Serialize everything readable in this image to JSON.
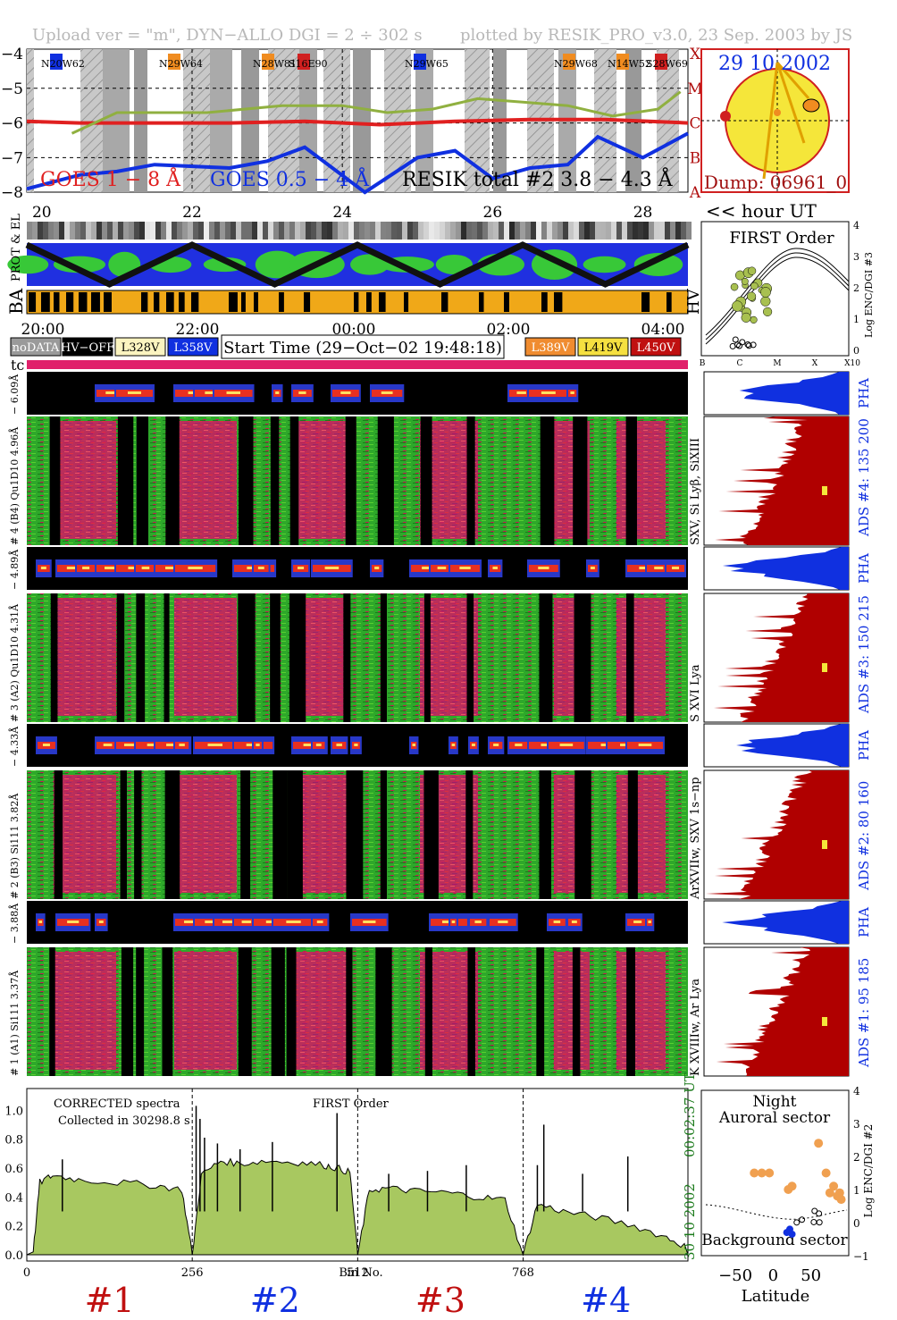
{
  "header": {
    "left": "Upload ver = \"m\", DYN−ALLO DGI =   2 ÷ 302 s",
    "right": "plotted by RESIK_PRO_v3.0, 23 Sep. 2003 by JS"
  },
  "lightcurve": {
    "yticks": [
      "−4",
      "−5",
      "−6",
      "−7",
      "−8"
    ],
    "class_letters": [
      "X",
      "M",
      "C",
      "B",
      "A"
    ],
    "regions": [
      {
        "label": "N20W62",
        "color": "#1030e0"
      },
      {
        "label": "N29W64",
        "color": "#f08c20"
      },
      {
        "label": "N28W81",
        "color": "#f08c20"
      },
      {
        "label": "S16E90",
        "color": "#d02020"
      },
      {
        "label": "N29W65",
        "color": "#1030e0"
      },
      {
        "label": "N29W68",
        "color": "#f08c20"
      },
      {
        "label": "N14W52",
        "color": "#f08c20"
      },
      {
        "label": "S28W69",
        "color": "#d02020"
      }
    ],
    "legend_goes1": "GOES 1 − 8 Å",
    "legend_goes2": "GOES 0.5 − 4 Å",
    "legend_resik": "RESIK total #2  3.8 − 4.3 Å",
    "hour_ticks": [
      "20",
      "22",
      "24",
      "26",
      "28"
    ],
    "hour_label": "<< hour UT"
  },
  "sun": {
    "date": "29 10 2002",
    "dump": "Dump: 06961_0"
  },
  "orbit": {
    "label_prot": "PROT & EL",
    "label_ba": "BA",
    "label_hv": "HV",
    "time_ticks": [
      "20:00",
      "22:00",
      "00:00",
      "02:00",
      "04:00"
    ]
  },
  "legend": {
    "nodata": "noDATA",
    "hvoff": "HV−OFF",
    "l328": "L328V",
    "l358": "L358V",
    "start_time": "Start Time (29−Oct−02 19:48:18)",
    "l389": "L389V",
    "l419": "L419V",
    "l450": "L450V",
    "tc": "tc"
  },
  "first_order": {
    "title": "FIRST Order",
    "ylabel": "Log ENC/DGI #3",
    "yticks": [
      "4",
      "3",
      "2",
      "1",
      "0"
    ],
    "xticks": [
      "B",
      "C",
      "M",
      "X",
      "X10"
    ]
  },
  "channels": [
    {
      "pha_label": "− 6.09Å",
      "main_label": "# 4 (B4) Qu1D10 4.96Å",
      "line_label": "SXV, Si Lyβ, SiXIII",
      "ads": "ADS #4:   135 200"
    },
    {
      "pha_label": "− 4.89Å",
      "main_label": "# 3 (A2) Qu1D10 4.31Å",
      "line_label": "S XVI Lya",
      "ads": "ADS #3:   150 215"
    },
    {
      "pha_label": "− 4.33Å",
      "main_label": "# 2 (B3) Si111 3.82Å",
      "line_label": "ArXVIIw, SXV 1s−np",
      "ads": "ADS #2:    80 160"
    },
    {
      "pha_label": "− 3.88Å",
      "main_label": "# 1 (A1) Si111 3.37Å",
      "line_label": "K XVIIIw, Ar Lya",
      "ads": "ADS #1:    95 185"
    }
  ],
  "pha_tag": "PHA",
  "spectrum": {
    "title1": "CORRECTED spectra",
    "title2": "Collected in 30298.8 s",
    "title3": "FIRST Order",
    "yticks": [
      "1.0",
      "0.8",
      "0.6",
      "0.4",
      "0.2",
      "0.0"
    ],
    "xticks": [
      "0",
      "256",
      "512",
      "768"
    ],
    "xlabel": "Bin No.",
    "date": "30 10 2002",
    "time": "00:02:37 UT",
    "channel_tags": [
      "#1",
      "#2",
      "#3",
      "#4"
    ]
  },
  "latitude": {
    "night": "Night",
    "auroral": "Auroral sector",
    "background": "Background sector",
    "ylabel": "Log ENC/DGI #2",
    "yticks": [
      "4",
      "3",
      "2",
      "1",
      "0",
      "−1"
    ],
    "xticks": [
      "−50",
      "0",
      "50"
    ],
    "xlabel": "Latitude"
  },
  "chart_data": [
    {
      "type": "line",
      "title": "",
      "xlabel": "hour UT",
      "ylabel": "",
      "xlim": [
        19.8,
        28.6
      ],
      "ylim": [
        -8,
        -4
      ],
      "series": [
        {
          "name": "GOES 1 − 8 Å",
          "x": [
            19.8,
            20.5,
            21.5,
            22.5,
            23.5,
            24.5,
            25.5,
            26.5,
            27.5,
            28.6
          ],
          "values": [
            -5.95,
            -6.0,
            -6.0,
            -6.0,
            -5.95,
            -6.05,
            -5.95,
            -5.9,
            -5.9,
            -6.0
          ]
        },
        {
          "name": "GOES 0.5 − 4 Å",
          "x": [
            19.8,
            20.5,
            21.0,
            21.5,
            22.5,
            23.0,
            23.5,
            24.3,
            25.0,
            25.5,
            26.0,
            26.5,
            27.0,
            27.4,
            28.0,
            28.6
          ],
          "values": [
            -7.9,
            -7.5,
            -7.4,
            -7.2,
            -7.3,
            -7.1,
            -6.7,
            -8.0,
            -7.0,
            -6.8,
            -7.6,
            -7.3,
            -7.2,
            -6.4,
            -7.0,
            -6.3
          ]
        },
        {
          "name": "RESIK total #2  3.8 − 4.3 Å",
          "x": [
            20.4,
            21.0,
            21.6,
            22.2,
            23.2,
            24.0,
            24.6,
            25.2,
            25.8,
            26.4,
            27.0,
            27.6,
            28.2,
            28.5
          ],
          "values": [
            -6.3,
            -5.7,
            -5.7,
            -5.7,
            -5.5,
            -5.5,
            -5.7,
            -5.6,
            -5.3,
            -5.4,
            -5.5,
            -5.8,
            -5.6,
            -5.1
          ]
        }
      ]
    },
    {
      "type": "area",
      "title": "CORRECTED spectra",
      "xlabel": "Bin No.",
      "ylabel": "",
      "xlim": [
        0,
        1023
      ],
      "ylim": [
        0,
        1.15
      ],
      "x": [
        0,
        10,
        20,
        40,
        80,
        140,
        200,
        240,
        256,
        270,
        300,
        330,
        370,
        420,
        460,
        480,
        500,
        512,
        530,
        560,
        600,
        650,
        700,
        740,
        768,
        790,
        830,
        880,
        940,
        990,
        1023
      ],
      "series": [
        {
          "name": "",
          "values": [
            0.0,
            0.02,
            0.5,
            0.55,
            0.52,
            0.5,
            0.48,
            0.45,
            0.0,
            0.55,
            0.65,
            0.63,
            0.65,
            0.64,
            0.62,
            0.6,
            0.57,
            0.0,
            0.45,
            0.46,
            0.44,
            0.43,
            0.4,
            0.38,
            0.0,
            0.35,
            0.3,
            0.26,
            0.2,
            0.12,
            0.05
          ]
        }
      ]
    },
    {
      "type": "scatter",
      "title": "",
      "xlabel": "Latitude",
      "ylabel": "Log ENC/DGI #2",
      "xlim": [
        -95,
        100
      ],
      "ylim": [
        -1,
        4
      ],
      "series": [
        {
          "name": "Auroral sector",
          "x": [
            -25,
            -15,
            -5,
            20,
            25,
            60,
            70,
            75,
            80,
            85,
            90,
            88
          ],
          "values": [
            1.5,
            1.5,
            1.5,
            1.0,
            1.1,
            2.4,
            1.5,
            0.9,
            1.1,
            0.8,
            0.7,
            0.9
          ]
        },
        {
          "name": "Background sector",
          "x": [
            18,
            22,
            25
          ],
          "values": [
            -0.3,
            -0.2,
            -0.35
          ]
        }
      ]
    }
  ]
}
